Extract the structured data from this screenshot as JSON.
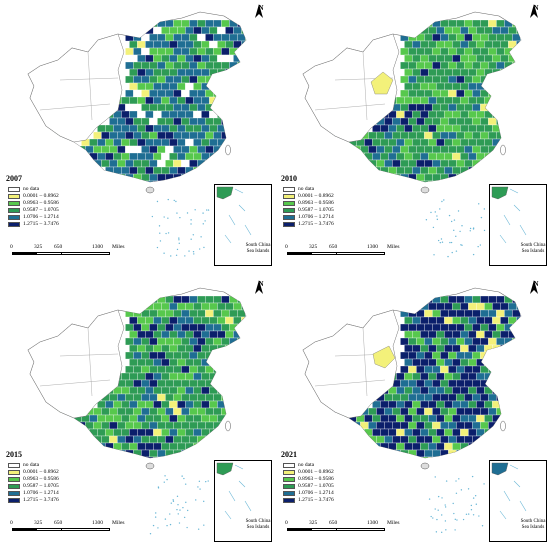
{
  "north_label": "N",
  "legend": [
    {
      "label": "no data",
      "color": "#ffffff"
    },
    {
      "label": "0.0001 – 0.8962",
      "color": "#f3f17a"
    },
    {
      "label": "0.8963 – 0.9586",
      "color": "#57c84d"
    },
    {
      "label": "0.9587 – 1.0705",
      "color": "#2e9b55"
    },
    {
      "label": "1.0706 – 1.2714",
      "color": "#1f6e93"
    },
    {
      "label": "1.2715 – 3.7476",
      "color": "#0b1f6b"
    }
  ],
  "scale": {
    "ticks": [
      "0",
      "325",
      "650",
      "1300"
    ],
    "unit": "Miles"
  },
  "inset_label": "South China Sea Islands",
  "panels": [
    {
      "year": "2007",
      "dominant": "mixed-blue-green"
    },
    {
      "year": "2010",
      "dominant": "green"
    },
    {
      "year": "2015",
      "dominant": "green"
    },
    {
      "year": "2021",
      "dominant": "dark-navy"
    }
  ]
}
